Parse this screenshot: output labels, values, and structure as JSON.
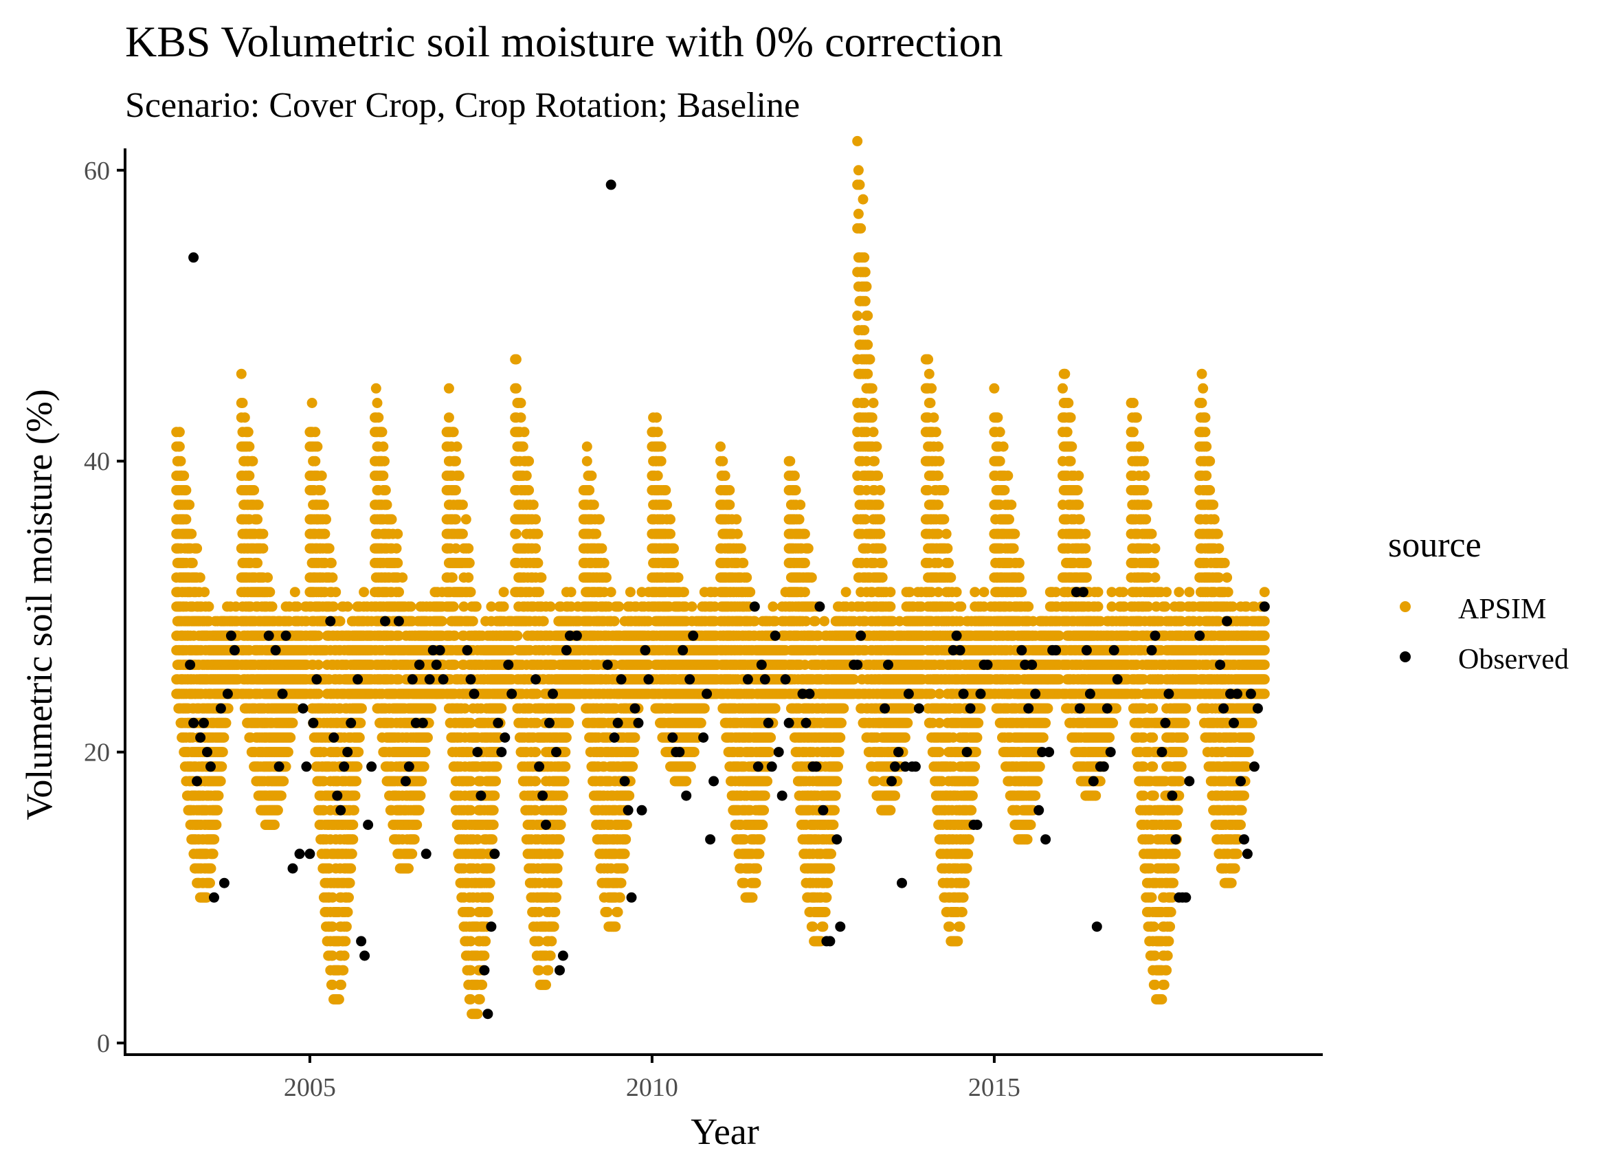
{
  "chart_data": {
    "type": "scatter",
    "title": "KBS Volumetric soil moisture with 0% correction",
    "subtitle": "Scenario: Cover Crop, Crop Rotation; Baseline",
    "xlabel": "Year",
    "ylabel": "Volumetric soil moisture (%)",
    "x_ticks": [
      "2005",
      "2010",
      "2015"
    ],
    "y_ticks": [
      "0",
      "20",
      "40",
      "60"
    ],
    "xlim": [
      2002.3,
      2019.8
    ],
    "ylim": [
      -0.8,
      61.5
    ],
    "grid": false,
    "legend": {
      "title": "source",
      "position": "right",
      "entries": [
        "APSIM",
        "Observed"
      ]
    },
    "colors": {
      "APSIM": "#E69F00",
      "Observed": "#000000"
    },
    "series": [
      {
        "name": "APSIM",
        "seasons": [
          {
            "start": 2003.05,
            "end": 2003.95,
            "low": 10,
            "peak": 39
          },
          {
            "start": 2004.0,
            "end": 2004.95,
            "low": 15,
            "peak": 42
          },
          {
            "start": 2005.0,
            "end": 2005.9,
            "low": 3,
            "peak": 41
          },
          {
            "start": 2005.95,
            "end": 2006.95,
            "low": 12,
            "peak": 42
          },
          {
            "start": 2007.0,
            "end": 2007.95,
            "low": 2,
            "peak": 42
          },
          {
            "start": 2008.0,
            "end": 2008.95,
            "low": 4,
            "peak": 44
          },
          {
            "start": 2009.0,
            "end": 2009.95,
            "low": 8,
            "peak": 38
          },
          {
            "start": 2010.0,
            "end": 2010.95,
            "low": 18,
            "peak": 41
          },
          {
            "start": 2011.0,
            "end": 2011.95,
            "low": 10,
            "peak": 38
          },
          {
            "start": 2012.0,
            "end": 2012.95,
            "low": 7,
            "peak": 38
          },
          {
            "start": 2013.0,
            "end": 2013.95,
            "low": 16,
            "peak": 58
          },
          {
            "start": 2014.0,
            "end": 2014.95,
            "low": 7,
            "peak": 45
          },
          {
            "start": 2015.0,
            "end": 2015.95,
            "low": 14,
            "peak": 42
          },
          {
            "start": 2016.0,
            "end": 2016.95,
            "low": 17,
            "peak": 44
          },
          {
            "start": 2017.0,
            "end": 2017.95,
            "low": 3,
            "peak": 43
          },
          {
            "start": 2018.0,
            "end": 2018.95,
            "low": 11,
            "peak": 43
          }
        ]
      },
      {
        "name": "Observed",
        "points": [
          [
            2003.3,
            54
          ],
          [
            2003.25,
            26
          ],
          [
            2003.3,
            22
          ],
          [
            2003.35,
            18
          ],
          [
            2003.4,
            21
          ],
          [
            2003.45,
            22
          ],
          [
            2003.5,
            20
          ],
          [
            2003.55,
            19
          ],
          [
            2003.6,
            10
          ],
          [
            2003.7,
            23
          ],
          [
            2003.75,
            11
          ],
          [
            2003.8,
            24
          ],
          [
            2003.85,
            28
          ],
          [
            2003.9,
            27
          ],
          [
            2004.4,
            28
          ],
          [
            2004.5,
            27
          ],
          [
            2004.55,
            19
          ],
          [
            2004.6,
            24
          ],
          [
            2004.65,
            28
          ],
          [
            2004.75,
            12
          ],
          [
            2004.85,
            13
          ],
          [
            2004.9,
            23
          ],
          [
            2004.95,
            19
          ],
          [
            2005.0,
            13
          ],
          [
            2005.05,
            22
          ],
          [
            2005.1,
            25
          ],
          [
            2005.3,
            29
          ],
          [
            2005.35,
            21
          ],
          [
            2005.4,
            17
          ],
          [
            2005.45,
            16
          ],
          [
            2005.5,
            19
          ],
          [
            2005.55,
            20
          ],
          [
            2005.6,
            22
          ],
          [
            2005.7,
            25
          ],
          [
            2005.75,
            7
          ],
          [
            2005.8,
            6
          ],
          [
            2005.85,
            15
          ],
          [
            2005.9,
            19
          ],
          [
            2006.1,
            29
          ],
          [
            2006.3,
            29
          ],
          [
            2006.4,
            18
          ],
          [
            2006.45,
            19
          ],
          [
            2006.5,
            25
          ],
          [
            2006.55,
            22
          ],
          [
            2006.6,
            26
          ],
          [
            2006.65,
            22
          ],
          [
            2006.7,
            13
          ],
          [
            2006.75,
            25
          ],
          [
            2006.8,
            27
          ],
          [
            2006.85,
            26
          ],
          [
            2006.9,
            27
          ],
          [
            2006.95,
            25
          ],
          [
            2007.3,
            27
          ],
          [
            2007.35,
            25
          ],
          [
            2007.4,
            24
          ],
          [
            2007.45,
            20
          ],
          [
            2007.5,
            17
          ],
          [
            2007.55,
            5
          ],
          [
            2007.6,
            2
          ],
          [
            2007.65,
            8
          ],
          [
            2007.7,
            13
          ],
          [
            2007.75,
            22
          ],
          [
            2007.8,
            20
          ],
          [
            2007.85,
            21
          ],
          [
            2007.9,
            26
          ],
          [
            2007.95,
            24
          ],
          [
            2008.3,
            25
          ],
          [
            2008.35,
            19
          ],
          [
            2008.4,
            17
          ],
          [
            2008.45,
            15
          ],
          [
            2008.5,
            22
          ],
          [
            2008.55,
            24
          ],
          [
            2008.6,
            20
          ],
          [
            2008.65,
            5
          ],
          [
            2008.7,
            6
          ],
          [
            2008.75,
            27
          ],
          [
            2008.8,
            28
          ],
          [
            2008.9,
            28
          ],
          [
            2009.4,
            59
          ],
          [
            2009.35,
            26
          ],
          [
            2009.45,
            21
          ],
          [
            2009.5,
            22
          ],
          [
            2009.55,
            25
          ],
          [
            2009.6,
            18
          ],
          [
            2009.65,
            16
          ],
          [
            2009.7,
            10
          ],
          [
            2009.75,
            23
          ],
          [
            2009.8,
            22
          ],
          [
            2009.85,
            16
          ],
          [
            2009.9,
            27
          ],
          [
            2009.95,
            25
          ],
          [
            2010.3,
            21
          ],
          [
            2010.35,
            20
          ],
          [
            2010.4,
            20
          ],
          [
            2010.45,
            27
          ],
          [
            2010.5,
            17
          ],
          [
            2010.55,
            25
          ],
          [
            2010.6,
            28
          ],
          [
            2010.75,
            21
          ],
          [
            2010.8,
            24
          ],
          [
            2010.85,
            14
          ],
          [
            2010.9,
            18
          ],
          [
            2011.4,
            25
          ],
          [
            2011.5,
            30
          ],
          [
            2011.55,
            19
          ],
          [
            2011.6,
            26
          ],
          [
            2011.65,
            25
          ],
          [
            2011.7,
            22
          ],
          [
            2011.75,
            19
          ],
          [
            2011.8,
            28
          ],
          [
            2011.85,
            20
          ],
          [
            2011.9,
            17
          ],
          [
            2011.95,
            25
          ],
          [
            2012.0,
            22
          ],
          [
            2012.2,
            24
          ],
          [
            2012.25,
            22
          ],
          [
            2012.3,
            24
          ],
          [
            2012.35,
            19
          ],
          [
            2012.4,
            19
          ],
          [
            2012.45,
            30
          ],
          [
            2012.5,
            16
          ],
          [
            2012.55,
            7
          ],
          [
            2012.6,
            7
          ],
          [
            2012.7,
            14
          ],
          [
            2012.75,
            8
          ],
          [
            2012.95,
            26
          ],
          [
            2013.0,
            26
          ],
          [
            2013.05,
            28
          ],
          [
            2013.4,
            23
          ],
          [
            2013.45,
            26
          ],
          [
            2013.5,
            18
          ],
          [
            2013.55,
            19
          ],
          [
            2013.6,
            20
          ],
          [
            2013.65,
            11
          ],
          [
            2013.7,
            19
          ],
          [
            2013.75,
            24
          ],
          [
            2013.8,
            19
          ],
          [
            2013.85,
            19
          ],
          [
            2013.9,
            23
          ],
          [
            2014.4,
            27
          ],
          [
            2014.45,
            28
          ],
          [
            2014.5,
            27
          ],
          [
            2014.55,
            24
          ],
          [
            2014.6,
            20
          ],
          [
            2014.65,
            23
          ],
          [
            2014.7,
            15
          ],
          [
            2014.75,
            15
          ],
          [
            2014.8,
            24
          ],
          [
            2014.85,
            26
          ],
          [
            2014.9,
            26
          ],
          [
            2015.4,
            27
          ],
          [
            2015.45,
            26
          ],
          [
            2015.5,
            23
          ],
          [
            2015.55,
            26
          ],
          [
            2015.6,
            24
          ],
          [
            2015.65,
            16
          ],
          [
            2015.7,
            20
          ],
          [
            2015.75,
            14
          ],
          [
            2015.8,
            20
          ],
          [
            2015.85,
            27
          ],
          [
            2015.9,
            27
          ],
          [
            2016.2,
            31
          ],
          [
            2016.25,
            23
          ],
          [
            2016.3,
            31
          ],
          [
            2016.35,
            27
          ],
          [
            2016.4,
            24
          ],
          [
            2016.45,
            18
          ],
          [
            2016.5,
            8
          ],
          [
            2016.55,
            19
          ],
          [
            2016.6,
            19
          ],
          [
            2016.65,
            23
          ],
          [
            2016.7,
            20
          ],
          [
            2016.75,
            27
          ],
          [
            2016.8,
            25
          ],
          [
            2017.3,
            27
          ],
          [
            2017.35,
            28
          ],
          [
            2017.45,
            20
          ],
          [
            2017.5,
            22
          ],
          [
            2017.55,
            24
          ],
          [
            2017.6,
            17
          ],
          [
            2017.65,
            14
          ],
          [
            2017.7,
            10
          ],
          [
            2017.75,
            10
          ],
          [
            2017.8,
            10
          ],
          [
            2017.85,
            18
          ],
          [
            2018.0,
            28
          ],
          [
            2018.3,
            26
          ],
          [
            2018.35,
            23
          ],
          [
            2018.4,
            29
          ],
          [
            2018.45,
            24
          ],
          [
            2018.5,
            22
          ],
          [
            2018.55,
            24
          ],
          [
            2018.6,
            18
          ],
          [
            2018.65,
            14
          ],
          [
            2018.7,
            13
          ],
          [
            2018.75,
            24
          ],
          [
            2018.8,
            19
          ],
          [
            2018.85,
            23
          ],
          [
            2018.95,
            30
          ]
        ]
      }
    ]
  }
}
